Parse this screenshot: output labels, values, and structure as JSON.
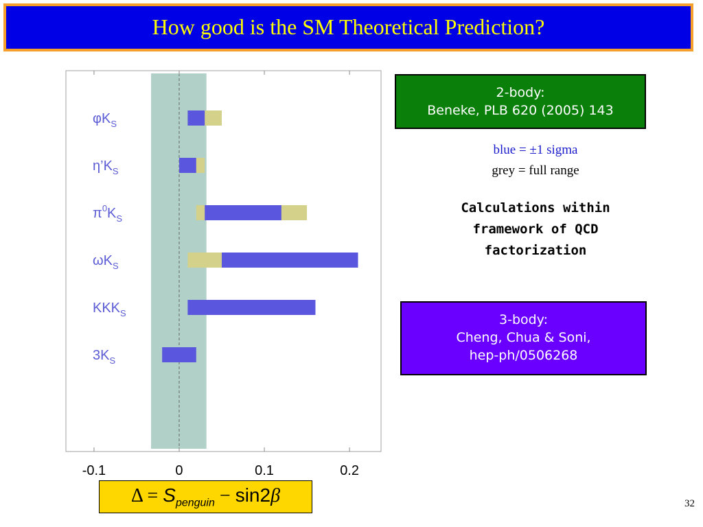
{
  "title": "How good is the SM  Theoretical Prediction?",
  "colors": {
    "blue_bar": "#5a57de",
    "grey_bar": "#d4d18a",
    "band": "#b1d0c8",
    "label": "#5b5bd6"
  },
  "chart_data": {
    "type": "bar",
    "orientation": "horizontal",
    "categories": [
      "φK_S",
      "η'K_S",
      "π0K_S",
      "ωK_S",
      "KKK_S",
      "3K_S"
    ],
    "category_labels": [
      {
        "main": "φK",
        "sup": "",
        "sub": "S"
      },
      {
        "main": "η’K",
        "sup": "",
        "sub": "S"
      },
      {
        "main": "π",
        "sup": "0",
        "main2": "K",
        "sub": "S"
      },
      {
        "main": "ωK",
        "sup": "",
        "sub": "S"
      },
      {
        "main": "KKK",
        "sup": "",
        "sub": "S"
      },
      {
        "main": "3K",
        "sup": "",
        "sub": "S"
      }
    ],
    "series": [
      {
        "name": "full range",
        "color": "#d4d18a",
        "ranges": [
          [
            0.01,
            0.05
          ],
          [
            0.0,
            0.03
          ],
          [
            0.02,
            0.15
          ],
          [
            0.01,
            0.21
          ],
          null,
          null
        ]
      },
      {
        "name": "±1 sigma",
        "color": "#5a57de",
        "ranges": [
          [
            0.01,
            0.03
          ],
          [
            0.0,
            0.02
          ],
          [
            0.03,
            0.12
          ],
          [
            0.05,
            0.21
          ],
          [
            0.01,
            0.16
          ],
          [
            -0.02,
            0.02
          ]
        ]
      }
    ],
    "band": [
      -0.033,
      0.032
    ],
    "reference_line": 0,
    "xlim": [
      -0.133,
      0.237
    ],
    "xticks": [
      -0.1,
      0,
      0.1,
      0.2
    ],
    "xtick_labels": [
      "-0.1",
      "0",
      "0.1",
      "0.2"
    ],
    "xlabel_formula": {
      "delta": "Δ",
      "eq": "=",
      "S": "S",
      "sub": "penguin",
      "minus": "−",
      "sin": "sin",
      "two": "2",
      "beta": "β"
    }
  },
  "box_2body": {
    "line1": "2-body:",
    "line2": "Beneke, PLB 620 (2005) 143"
  },
  "legend_notes": {
    "blue": "blue =  ±1 sigma",
    "grey": "grey = full range"
  },
  "calc_note": {
    "line1": "Calculations within",
    "line2": "framework of QCD",
    "line3": "factorization"
  },
  "box_3body": {
    "line1": "3-body:",
    "line2": "Cheng, Chua & Soni,",
    "line3": "hep-ph/0506268"
  },
  "page_number": "32"
}
